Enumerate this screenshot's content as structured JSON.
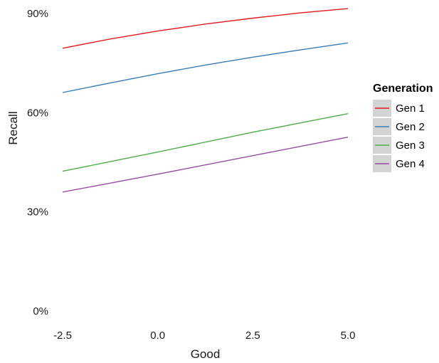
{
  "chart_data": {
    "type": "line",
    "xlabel": "Good",
    "ylabel": "Recall",
    "xlim": [
      -2.5,
      5.0
    ],
    "ylim": [
      0,
      0.92
    ],
    "x_ticks": [
      -2.5,
      0.0,
      2.5,
      5.0
    ],
    "x_tick_labels": [
      "-2.5",
      "0.0",
      "2.5",
      "5.0"
    ],
    "y_ticks": [
      0,
      0.3,
      0.6,
      0.9
    ],
    "y_tick_labels": [
      "0%",
      "30%",
      "60%",
      "90%"
    ],
    "grid": false,
    "x": [
      -2.5,
      -1.25,
      0.0,
      1.25,
      2.5,
      3.75,
      5.0
    ],
    "series": [
      {
        "name": "Gen 1",
        "color": "#e41a1c",
        "values": [
          0.795,
          0.823,
          0.847,
          0.868,
          0.886,
          0.902,
          0.915
        ]
      },
      {
        "name": "Gen 2",
        "color": "#377eb8",
        "values": [
          0.661,
          0.69,
          0.718,
          0.744,
          0.768,
          0.79,
          0.811
        ]
      },
      {
        "name": "Gen 3",
        "color": "#4daf4a",
        "values": [
          0.423,
          0.452,
          0.481,
          0.511,
          0.541,
          0.569,
          0.597
        ]
      },
      {
        "name": "Gen 4",
        "color": "#984ea3",
        "values": [
          0.36,
          0.387,
          0.414,
          0.442,
          0.47,
          0.498,
          0.526
        ]
      }
    ],
    "legend": {
      "title": "Generation",
      "position": "right"
    }
  }
}
